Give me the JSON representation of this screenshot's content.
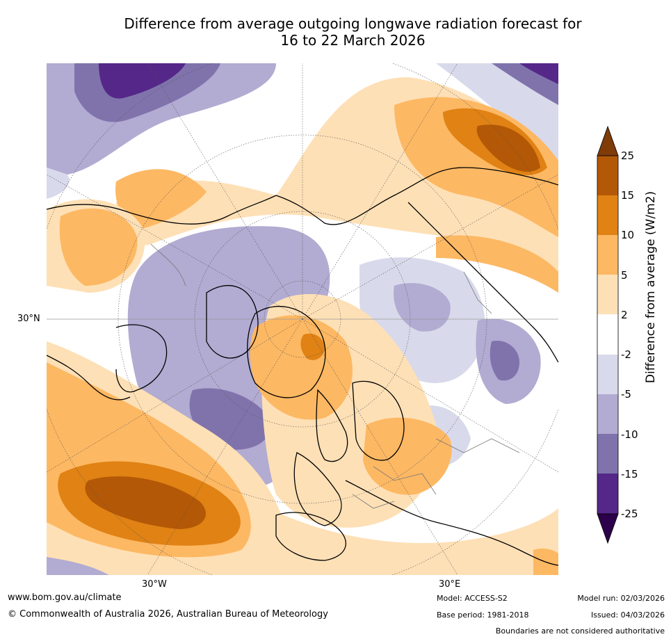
{
  "title_line1": "Difference from average outgoing longwave radiation forecast for",
  "title_line2": "16 to 22 March 2026",
  "map": {
    "projection": "north-polar-stereographic",
    "lat_label": "30°N",
    "lon_labels": [
      "30°W",
      "30°E"
    ]
  },
  "colorbar": {
    "title": "Difference from average (W/m2)",
    "tick_labels": [
      "25",
      "15",
      "10",
      "5",
      "2",
      "-2",
      "-5",
      "-10",
      "-15",
      "-25"
    ],
    "bins": [
      {
        "range": "> 25",
        "color": "#7f3b08"
      },
      {
        "range": "15 to 25",
        "color": "#b35806"
      },
      {
        "range": "10 to 15",
        "color": "#e08214"
      },
      {
        "range": "5 to 10",
        "color": "#fdb863"
      },
      {
        "range": "2 to 5",
        "color": "#fee0b6"
      },
      {
        "range": "-2 to 2",
        "color": "#ffffff"
      },
      {
        "range": "-5 to -2",
        "color": "#d8daeb"
      },
      {
        "range": "-10 to -5",
        "color": "#b2abd2"
      },
      {
        "range": "-15 to -10",
        "color": "#8073ac"
      },
      {
        "range": "-25 to -15",
        "color": "#542788"
      },
      {
        "range": "< -25",
        "color": "#2d004b"
      }
    ]
  },
  "footer": {
    "url": "www.bom.gov.au/climate",
    "copyright": "© Commonwealth of Australia 2026, Australian Bureau of Meteorology",
    "model": "Model: ACCESS-S2",
    "base_period": "Base period: 1981-2018",
    "model_run": "Model run: 02/03/2026",
    "issued": "Issued: 04/03/2026",
    "disclaimer": "Boundaries are not considered authoritative"
  }
}
